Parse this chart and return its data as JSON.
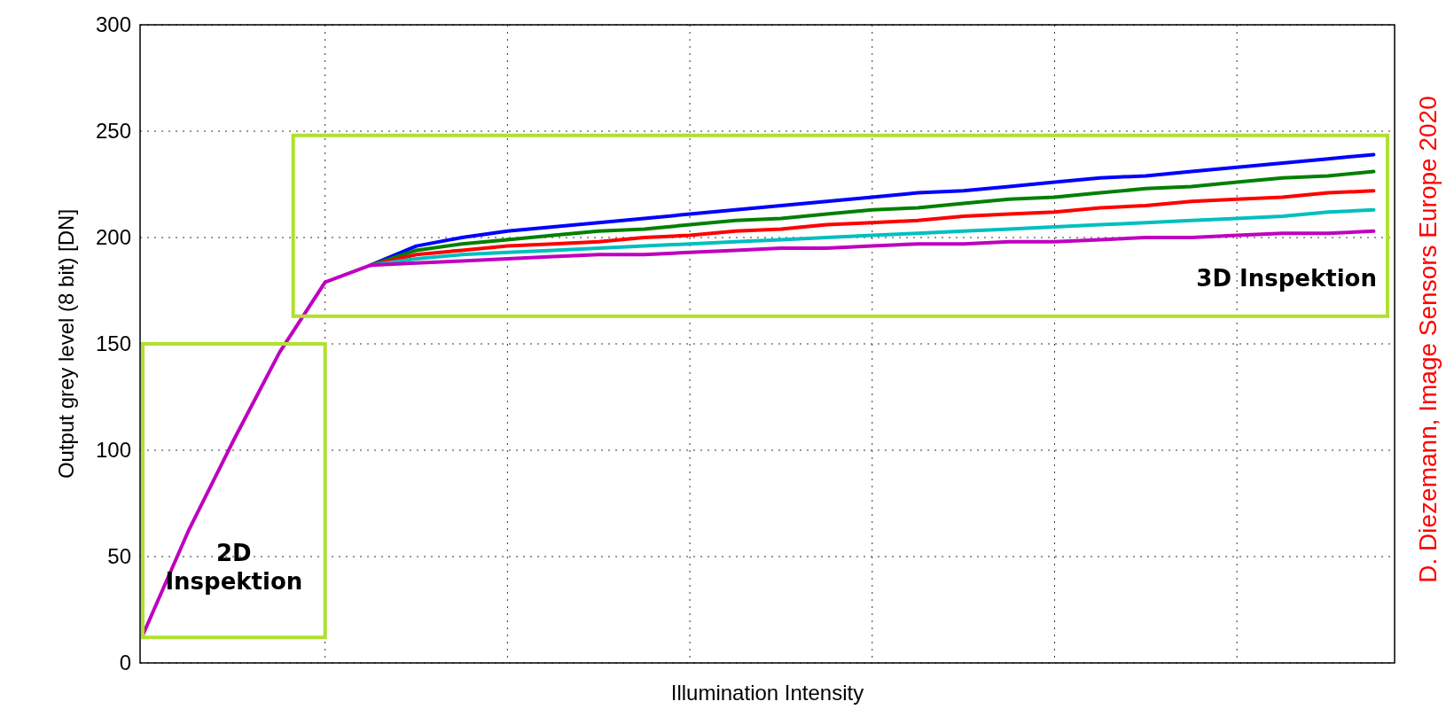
{
  "chart_data": {
    "type": "line",
    "xlabel": "Illumination Intensity",
    "ylabel": "Output grey level (8 bit) [DN]",
    "categories": [
      null,
      null,
      null,
      null,
      null,
      null,
      null,
      null,
      null,
      null,
      null,
      null,
      null,
      null,
      null,
      null,
      null,
      null,
      null,
      null,
      null,
      null,
      null,
      null,
      null,
      null,
      null,
      null
    ],
    "series": [
      {
        "color": "#0000ff",
        "values": [
          null,
          null,
          null,
          null,
          null,
          187,
          196,
          200,
          203,
          205,
          207,
          209,
          211,
          213,
          215,
          217,
          219,
          221,
          222,
          224,
          226,
          228,
          229,
          231,
          233,
          235,
          237,
          239
        ]
      },
      {
        "color": "#008000",
        "values": [
          null,
          null,
          null,
          null,
          null,
          187,
          194,
          197,
          199,
          201,
          203,
          204,
          206,
          208,
          209,
          211,
          213,
          214,
          216,
          218,
          219,
          221,
          223,
          224,
          226,
          228,
          229,
          231
        ]
      },
      {
        "color": "#ff0000",
        "values": [
          null,
          null,
          null,
          null,
          null,
          187,
          192,
          194,
          196,
          197,
          198,
          200,
          201,
          203,
          204,
          206,
          207,
          208,
          210,
          211,
          212,
          214,
          215,
          217,
          218,
          219,
          221,
          222
        ]
      },
      {
        "color": "#00bfbf",
        "values": [
          null,
          null,
          null,
          null,
          null,
          187,
          190,
          192,
          193,
          194,
          195,
          196,
          197,
          198,
          199,
          200,
          201,
          202,
          203,
          204,
          205,
          206,
          207,
          208,
          209,
          210,
          212,
          213
        ]
      },
      {
        "color": "#bf00bf",
        "values": [
          13,
          62,
          105,
          146,
          179,
          187,
          188,
          189,
          190,
          191,
          192,
          192,
          193,
          194,
          195,
          195,
          196,
          197,
          197,
          198,
          198,
          199,
          200,
          200,
          201,
          202,
          202,
          203
        ]
      }
    ],
    "ylim": [
      0,
      300
    ],
    "yticks": [
      0,
      50,
      100,
      150,
      200,
      250,
      300
    ],
    "grid": true,
    "marker": "none",
    "line_style": "solid",
    "annotations": [
      "2D\nInspektion",
      "3D Inspektion",
      "D. Diezemann, Image Sensors Europe 2020"
    ]
  }
}
